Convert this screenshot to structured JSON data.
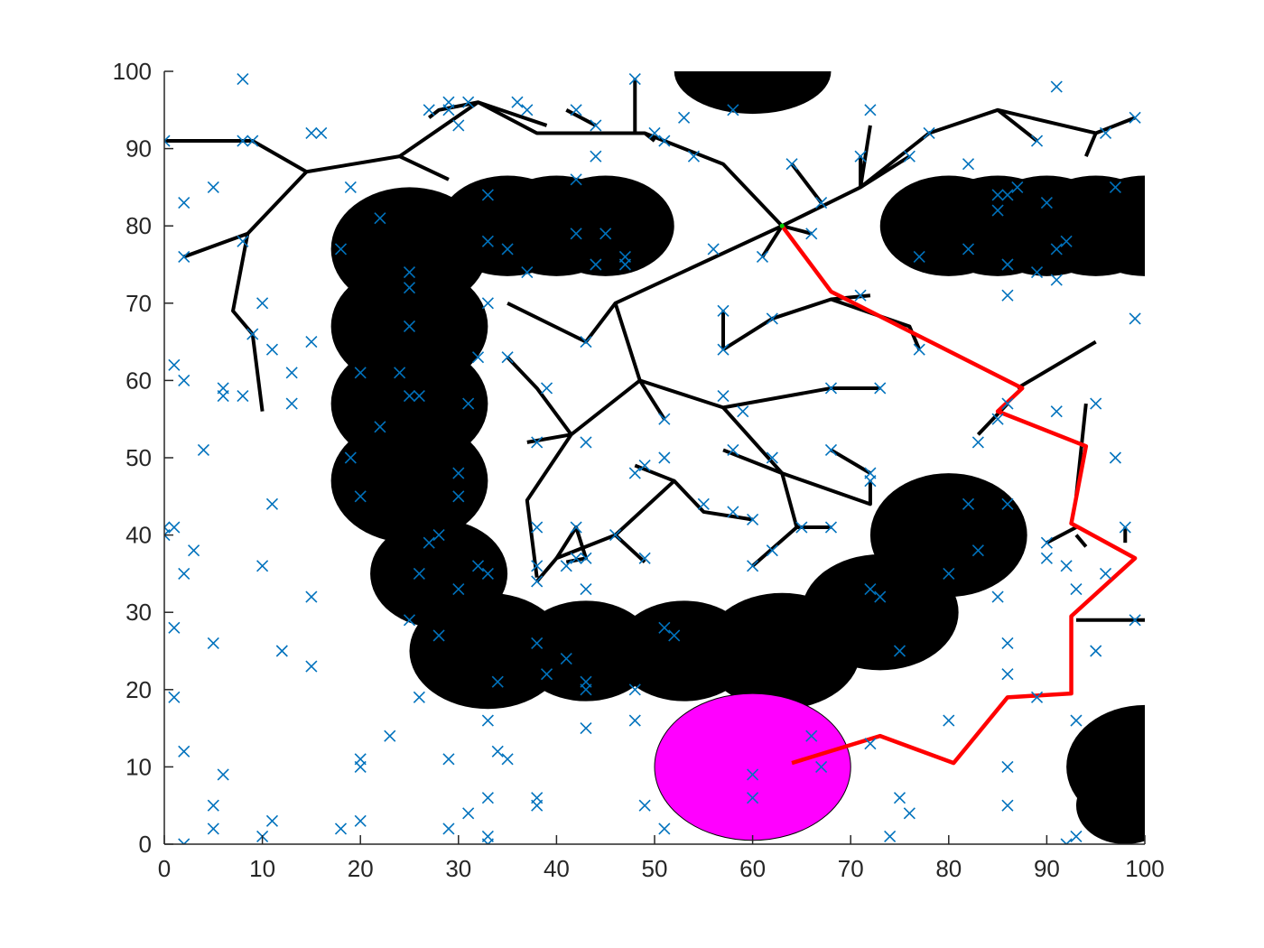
{
  "chart_data": {
    "type": "scatter",
    "title": "",
    "xlabel": "",
    "ylabel": "",
    "xlim": [
      0,
      100
    ],
    "ylim": [
      0,
      100
    ],
    "x_ticks": [
      "0",
      "10",
      "20",
      "30",
      "40",
      "50",
      "60",
      "70",
      "80",
      "90",
      "100"
    ],
    "y_ticks": [
      "0",
      "10",
      "20",
      "30",
      "40",
      "50",
      "60",
      "70",
      "80",
      "90",
      "100"
    ],
    "grid": false,
    "legend": "none",
    "colors": {
      "obstacle": "#000000",
      "goal": "#ff00ff",
      "samples": "#0072bd",
      "tree": "#000000",
      "path": "#ff0000",
      "axis": "#262626"
    },
    "obstacles": [
      {
        "x": 60,
        "y": 100,
        "rx": 8,
        "ry": 5.5
      },
      {
        "x": 25,
        "y": 77,
        "rx": 8,
        "ry": 8
      },
      {
        "x": 25,
        "y": 67,
        "rx": 8,
        "ry": 8
      },
      {
        "x": 25,
        "y": 57,
        "rx": 8,
        "ry": 8
      },
      {
        "x": 25,
        "y": 47,
        "rx": 8,
        "ry": 8
      },
      {
        "x": 28,
        "y": 35,
        "rx": 7,
        "ry": 7
      },
      {
        "x": 33,
        "y": 25,
        "rx": 8,
        "ry": 7.5
      },
      {
        "x": 43,
        "y": 25,
        "rx": 7,
        "ry": 6.5
      },
      {
        "x": 53,
        "y": 25,
        "rx": 7,
        "ry": 6.5
      },
      {
        "x": 63,
        "y": 25,
        "rx": 8,
        "ry": 7.5
      },
      {
        "x": 73,
        "y": 30,
        "rx": 8,
        "ry": 7.5
      },
      {
        "x": 80,
        "y": 40,
        "rx": 8,
        "ry": 8
      },
      {
        "x": 35,
        "y": 80,
        "rx": 7,
        "ry": 6.5
      },
      {
        "x": 40,
        "y": 80,
        "rx": 7,
        "ry": 6.5
      },
      {
        "x": 45,
        "y": 80,
        "rx": 7,
        "ry": 6.5
      },
      {
        "x": 80,
        "y": 80,
        "rx": 7,
        "ry": 6.5
      },
      {
        "x": 85,
        "y": 80,
        "rx": 7,
        "ry": 6.5
      },
      {
        "x": 90,
        "y": 80,
        "rx": 7,
        "ry": 6.5
      },
      {
        "x": 95,
        "y": 80,
        "rx": 7,
        "ry": 6.5
      },
      {
        "x": 100,
        "y": 80,
        "rx": 7,
        "ry": 6.5
      },
      {
        "x": 100,
        "y": 10,
        "rx": 8,
        "ry": 8
      },
      {
        "x": 98,
        "y": 5,
        "rx": 5,
        "ry": 5
      }
    ],
    "goal_region": {
      "x": 60,
      "y": 10,
      "rx": 10,
      "ry": 9.5
    },
    "start_point": {
      "x": 63,
      "y": 80
    },
    "tree_edges": [
      [
        [
          0,
          91
        ],
        [
          9,
          91
        ],
        [
          14.5,
          87
        ]
      ],
      [
        [
          14.5,
          87
        ],
        [
          24,
          89
        ],
        [
          29,
          86
        ]
      ],
      [
        [
          14.5,
          87
        ],
        [
          8.5,
          79
        ],
        [
          2,
          76
        ]
      ],
      [
        [
          8.5,
          79
        ],
        [
          7,
          69
        ],
        [
          9,
          66
        ],
        [
          10,
          56
        ]
      ],
      [
        [
          24,
          89
        ],
        [
          32,
          96
        ],
        [
          28,
          95
        ],
        [
          27,
          94
        ]
      ],
      [
        [
          32,
          96
        ],
        [
          38,
          92
        ],
        [
          49,
          92
        ],
        [
          57,
          88
        ],
        [
          63,
          80
        ]
      ],
      [
        [
          32,
          96
        ],
        [
          39,
          93
        ]
      ],
      [
        [
          48,
          92
        ],
        [
          48,
          99
        ]
      ],
      [
        [
          44,
          93
        ],
        [
          41,
          95
        ]
      ],
      [
        [
          49,
          92
        ],
        [
          50,
          91
        ]
      ],
      [
        [
          63,
          80
        ],
        [
          71,
          85
        ],
        [
          78,
          92
        ],
        [
          85,
          95
        ],
        [
          95,
          92
        ],
        [
          99,
          94
        ]
      ],
      [
        [
          95,
          92
        ],
        [
          94,
          89
        ]
      ],
      [
        [
          85,
          95
        ],
        [
          89,
          91
        ]
      ],
      [
        [
          71,
          85
        ],
        [
          76,
          89
        ]
      ],
      [
        [
          71,
          85
        ],
        [
          72,
          93
        ]
      ],
      [
        [
          71,
          85
        ],
        [
          71,
          89
        ]
      ],
      [
        [
          67,
          83
        ],
        [
          64,
          88
        ]
      ],
      [
        [
          63,
          80
        ],
        [
          61,
          76
        ]
      ],
      [
        [
          63,
          80
        ],
        [
          66,
          79
        ]
      ],
      [
        [
          63,
          80
        ],
        [
          46,
          70
        ],
        [
          43,
          65
        ],
        [
          35,
          70
        ]
      ],
      [
        [
          46,
          70
        ],
        [
          48.5,
          60
        ],
        [
          41.5,
          53
        ],
        [
          37,
          44.5
        ],
        [
          38,
          34.5
        ]
      ],
      [
        [
          41.5,
          53
        ],
        [
          38,
          59
        ],
        [
          35,
          63
        ]
      ],
      [
        [
          41.5,
          53
        ],
        [
          37,
          52
        ]
      ],
      [
        [
          48.5,
          60
        ],
        [
          51,
          55
        ]
      ],
      [
        [
          48.5,
          60
        ],
        [
          57,
          56.5
        ],
        [
          68,
          59
        ],
        [
          73,
          59
        ]
      ],
      [
        [
          57,
          56.5
        ],
        [
          63,
          48
        ],
        [
          64.5,
          41
        ],
        [
          68,
          41
        ]
      ],
      [
        [
          63,
          48
        ],
        [
          72,
          44
        ],
        [
          72,
          47
        ]
      ],
      [
        [
          57,
          51
        ],
        [
          63,
          48
        ]
      ],
      [
        [
          64.5,
          41
        ],
        [
          60,
          36
        ]
      ],
      [
        [
          38,
          34
        ],
        [
          40,
          37
        ],
        [
          46,
          40
        ],
        [
          49,
          36.5
        ]
      ],
      [
        [
          40,
          37
        ],
        [
          42,
          41
        ],
        [
          43,
          37
        ],
        [
          41,
          36.5
        ]
      ],
      [
        [
          46,
          40
        ],
        [
          52,
          47
        ],
        [
          55,
          43
        ],
        [
          60,
          42
        ]
      ],
      [
        [
          52,
          47
        ],
        [
          48,
          49
        ]
      ],
      [
        [
          57,
          64
        ],
        [
          62,
          68
        ],
        [
          68,
          70.5
        ],
        [
          76,
          67
        ],
        [
          77,
          64
        ]
      ],
      [
        [
          57,
          64
        ],
        [
          57,
          69
        ]
      ],
      [
        [
          68,
          70.5
        ],
        [
          72,
          71
        ]
      ],
      [
        [
          83,
          53
        ],
        [
          86,
          57
        ]
      ],
      [
        [
          87,
          59
        ],
        [
          95,
          65
        ]
      ],
      [
        [
          93,
          41
        ],
        [
          90,
          39
        ]
      ],
      [
        [
          94,
          57
        ],
        [
          93,
          45
        ]
      ],
      [
        [
          93,
          29
        ],
        [
          100,
          29
        ]
      ],
      [
        [
          93,
          40
        ],
        [
          94,
          38.5
        ]
      ],
      [
        [
          98,
          41
        ],
        [
          98,
          39
        ]
      ],
      [
        [
          68,
          51
        ],
        [
          72,
          48
        ]
      ]
    ],
    "path": [
      [
        64,
        10.5
      ],
      [
        73,
        14
      ],
      [
        80.5,
        10.5
      ],
      [
        86,
        19
      ],
      [
        92.5,
        19.5
      ],
      [
        92.5,
        29.5
      ],
      [
        99,
        37
      ],
      [
        92.5,
        41.5
      ],
      [
        94,
        51.5
      ],
      [
        85,
        56
      ],
      [
        87.5,
        59
      ],
      [
        68,
        71.5
      ],
      [
        63,
        80
      ]
    ],
    "samples": [
      [
        0,
        91
      ],
      [
        2,
        83
      ],
      [
        2,
        76
      ],
      [
        8,
        99
      ],
      [
        8,
        91
      ],
      [
        9,
        91
      ],
      [
        16,
        92
      ],
      [
        15,
        92
      ],
      [
        19,
        85
      ],
      [
        22,
        81
      ],
      [
        18,
        77
      ],
      [
        5,
        85
      ],
      [
        8,
        78
      ],
      [
        10,
        70
      ],
      [
        9,
        66
      ],
      [
        11,
        64
      ],
      [
        1,
        62
      ],
      [
        2,
        60
      ],
      [
        6,
        59
      ],
      [
        6,
        58
      ],
      [
        8,
        58
      ],
      [
        13,
        61
      ],
      [
        13,
        57
      ],
      [
        15,
        65
      ],
      [
        20,
        61
      ],
      [
        24,
        61
      ],
      [
        25,
        74
      ],
      [
        25,
        72
      ],
      [
        25,
        67
      ],
      [
        26,
        58
      ],
      [
        25,
        58
      ],
      [
        22,
        54
      ],
      [
        19,
        50
      ],
      [
        20,
        45
      ],
      [
        4,
        51
      ],
      [
        11,
        44
      ],
      [
        0,
        41
      ],
      [
        1,
        41
      ],
      [
        0,
        40
      ],
      [
        3,
        38
      ],
      [
        2,
        35
      ],
      [
        10,
        36
      ],
      [
        15,
        32
      ],
      [
        1,
        28
      ],
      [
        5,
        26
      ],
      [
        12,
        25
      ],
      [
        15,
        23
      ],
      [
        1,
        19
      ],
      [
        2,
        12
      ],
      [
        6,
        9
      ],
      [
        5,
        5
      ],
      [
        5,
        2
      ],
      [
        2,
        0
      ],
      [
        10,
        1
      ],
      [
        11,
        3
      ],
      [
        18,
        2
      ],
      [
        20,
        3
      ],
      [
        20,
        11
      ],
      [
        20,
        10
      ],
      [
        23,
        14
      ],
      [
        25,
        29
      ],
      [
        26,
        35
      ],
      [
        26,
        19
      ],
      [
        28,
        27
      ],
      [
        27,
        39
      ],
      [
        28,
        40
      ],
      [
        30,
        48
      ],
      [
        30,
        45
      ],
      [
        31,
        57
      ],
      [
        30,
        33
      ],
      [
        32,
        36
      ],
      [
        33,
        35
      ],
      [
        32,
        63
      ],
      [
        33,
        70
      ],
      [
        33,
        78
      ],
      [
        33,
        84
      ],
      [
        35,
        77
      ],
      [
        37,
        74
      ],
      [
        29,
        95
      ],
      [
        27,
        95
      ],
      [
        30,
        93
      ],
      [
        29,
        96
      ],
      [
        31,
        96
      ],
      [
        36,
        96
      ],
      [
        37,
        95
      ],
      [
        42,
        95
      ],
      [
        44,
        93
      ],
      [
        48,
        99
      ],
      [
        50,
        92
      ],
      [
        51,
        91
      ],
      [
        53,
        94
      ],
      [
        54,
        89
      ],
      [
        58,
        95
      ],
      [
        47,
        76
      ],
      [
        47,
        75
      ],
      [
        42,
        79
      ],
      [
        45,
        79
      ],
      [
        42,
        86
      ],
      [
        44,
        89
      ],
      [
        44,
        75
      ],
      [
        56,
        77
      ],
      [
        57,
        69
      ],
      [
        57,
        64
      ],
      [
        57,
        58
      ],
      [
        59,
        56
      ],
      [
        58,
        51
      ],
      [
        58,
        43
      ],
      [
        62,
        50
      ],
      [
        62,
        38
      ],
      [
        60,
        36
      ],
      [
        62,
        68
      ],
      [
        61,
        76
      ],
      [
        64,
        88
      ],
      [
        66,
        79
      ],
      [
        67,
        83
      ],
      [
        72,
        95
      ],
      [
        71,
        89
      ],
      [
        71,
        71
      ],
      [
        73,
        59
      ],
      [
        76,
        89
      ],
      [
        77,
        64
      ],
      [
        77,
        76
      ],
      [
        78,
        92
      ],
      [
        82,
        88
      ],
      [
        82,
        77
      ],
      [
        85,
        84
      ],
      [
        86,
        84
      ],
      [
        85,
        82
      ],
      [
        86,
        75
      ],
      [
        86,
        71
      ],
      [
        87,
        85
      ],
      [
        89,
        74
      ],
      [
        89,
        91
      ],
      [
        90,
        83
      ],
      [
        91,
        98
      ],
      [
        91,
        77
      ],
      [
        92,
        78
      ],
      [
        91,
        73
      ],
      [
        97,
        85
      ],
      [
        99,
        94
      ],
      [
        96,
        92
      ],
      [
        99,
        68
      ],
      [
        95,
        57
      ],
      [
        97,
        50
      ],
      [
        91,
        56
      ],
      [
        86,
        57
      ],
      [
        85,
        55
      ],
      [
        83,
        52
      ],
      [
        68,
        59
      ],
      [
        72,
        47
      ],
      [
        68,
        51
      ],
      [
        72,
        48
      ],
      [
        68,
        41
      ],
      [
        65,
        41
      ],
      [
        60,
        42
      ],
      [
        55,
        44
      ],
      [
        51,
        50
      ],
      [
        48,
        48
      ],
      [
        49,
        49
      ],
      [
        51,
        55
      ],
      [
        43,
        52
      ],
      [
        38,
        52
      ],
      [
        39,
        59
      ],
      [
        35,
        63
      ],
      [
        43,
        65
      ],
      [
        38,
        41
      ],
      [
        42,
        41
      ],
      [
        42,
        37
      ],
      [
        41,
        36
      ],
      [
        43,
        37
      ],
      [
        38,
        34
      ],
      [
        38,
        36
      ],
      [
        43,
        33
      ],
      [
        49,
        37
      ],
      [
        46,
        40
      ],
      [
        51,
        28
      ],
      [
        52,
        27
      ],
      [
        48,
        20
      ],
      [
        43,
        21
      ],
      [
        43,
        20
      ],
      [
        41,
        24
      ],
      [
        39,
        22
      ],
      [
        38,
        26
      ],
      [
        34,
        21
      ],
      [
        33,
        16
      ],
      [
        43,
        15
      ],
      [
        48,
        16
      ],
      [
        33,
        6
      ],
      [
        33,
        1
      ],
      [
        33,
        0
      ],
      [
        34,
        12
      ],
      [
        35,
        11
      ],
      [
        31,
        4
      ],
      [
        29,
        11
      ],
      [
        29,
        2
      ],
      [
        38,
        6
      ],
      [
        38,
        5
      ],
      [
        49,
        5
      ],
      [
        51,
        2
      ],
      [
        60,
        9
      ],
      [
        60,
        6
      ],
      [
        66,
        14
      ],
      [
        67,
        10
      ],
      [
        72,
        13
      ],
      [
        73,
        32
      ],
      [
        72,
        33
      ],
      [
        75,
        25
      ],
      [
        75,
        6
      ],
      [
        76,
        4
      ],
      [
        74,
        1
      ],
      [
        80,
        16
      ],
      [
        80,
        35
      ],
      [
        82,
        44
      ],
      [
        83,
        38
      ],
      [
        86,
        44
      ],
      [
        85,
        32
      ],
      [
        86,
        26
      ],
      [
        86,
        22
      ],
      [
        86,
        10
      ],
      [
        86,
        5
      ],
      [
        89,
        19
      ],
      [
        90,
        39
      ],
      [
        90,
        37
      ],
      [
        92,
        36
      ],
      [
        93,
        33
      ],
      [
        93,
        16
      ],
      [
        93,
        1
      ],
      [
        92,
        0
      ],
      [
        95,
        25
      ],
      [
        96,
        35
      ],
      [
        98,
        41
      ],
      [
        99,
        29
      ]
    ]
  }
}
